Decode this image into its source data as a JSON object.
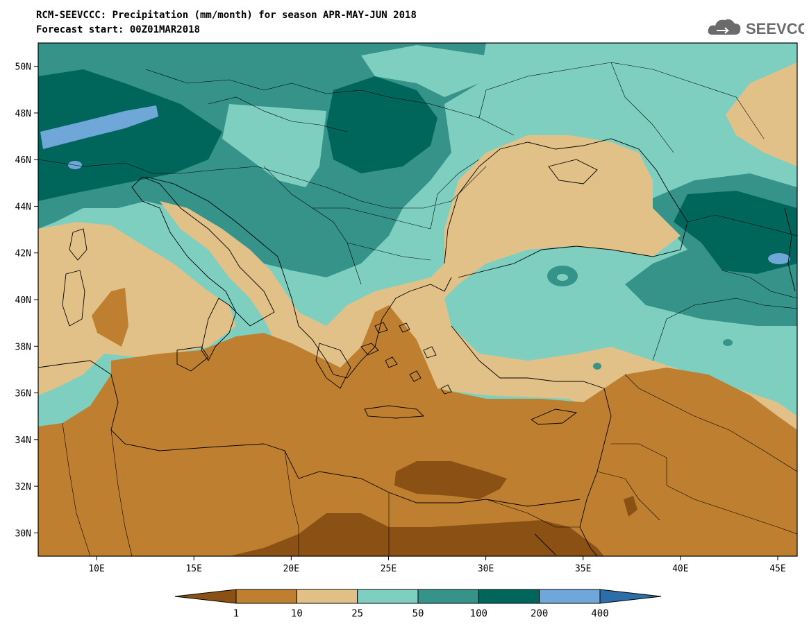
{
  "header": {
    "title": "RCM-SEEVCCC: Precipitation (mm/month) for season APR-MAY-JUN 2018",
    "subtitle": "Forecast start: 00Z01MAR2018",
    "logo_text": "SEEVCCC",
    "logo_icon": "cloud-icon"
  },
  "map": {
    "lon_labels": [
      "10E",
      "15E",
      "20E",
      "25E",
      "30E",
      "35E",
      "40E",
      "45E"
    ],
    "lat_labels": [
      "50N",
      "48N",
      "46N",
      "44N",
      "42N",
      "40N",
      "38N",
      "36N",
      "34N",
      "32N",
      "30N"
    ],
    "lon_range": [
      7,
      46
    ],
    "lat_range": [
      29,
      51
    ]
  },
  "legend": {
    "thresholds": [
      "1",
      "10",
      "25",
      "50",
      "100",
      "200",
      "400"
    ],
    "colors": [
      "#8b5014",
      "#bf7f30",
      "#e1c188",
      "#7fcfc0",
      "#35938a",
      "#00665c",
      "#6fa8d8",
      "#2e6ea8"
    ]
  }
}
